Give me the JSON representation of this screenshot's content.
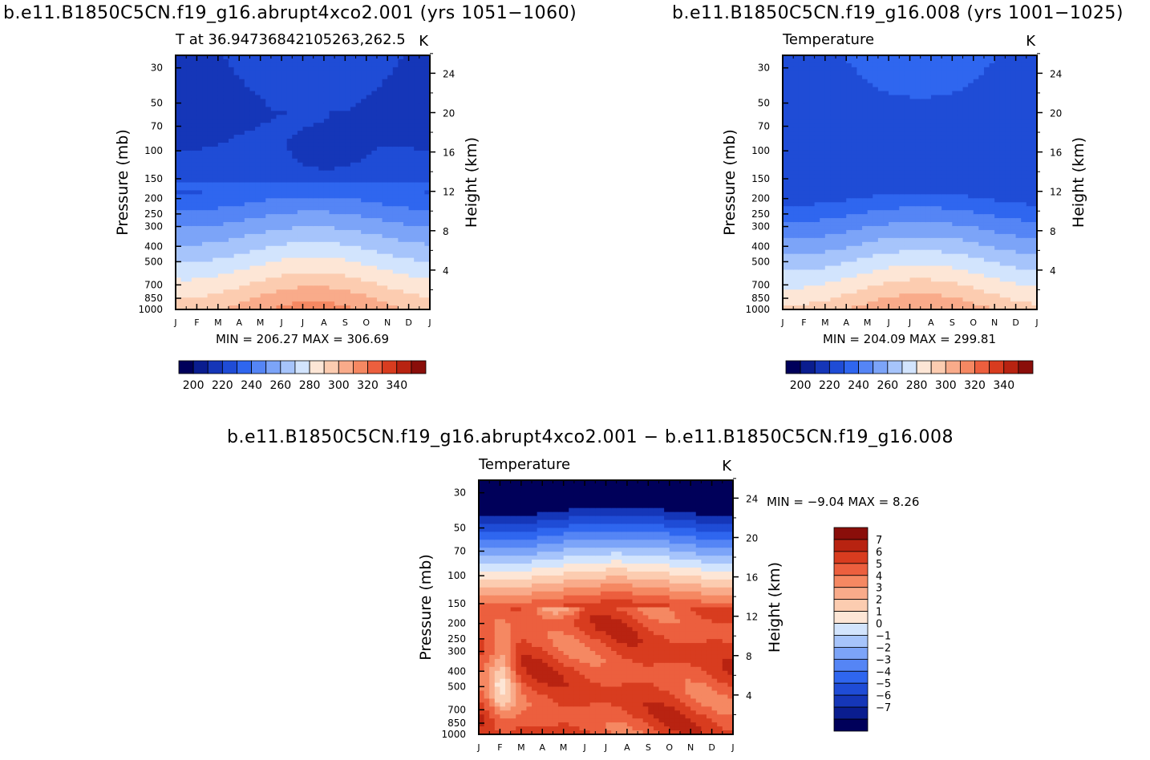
{
  "panel_titles": {
    "top_left": "b.e11.B1850C5CN.f19_g16.abrupt4xco2.001 (yrs 1051−1060)",
    "top_right": "b.e11.B1850C5CN.f19_g16.008 (yrs 1001−1025)",
    "bottom": "b.e11.B1850C5CN.f19_g16.abrupt4xco2.001 − b.e11.B1850C5CN.f19_g16.008"
  },
  "colors": {
    "temp_levels": [
      "#00005a",
      "#0a1d8f",
      "#1536b8",
      "#1f4cd6",
      "#2f66ef",
      "#5585f5",
      "#7ca4f8",
      "#a6c4fb",
      "#d2e4fd",
      "#fde6d6",
      "#fcccb0",
      "#f9ab8a",
      "#f58862",
      "#ec5f3e",
      "#d83c1f",
      "#b82311",
      "#8a0e0a"
    ],
    "diff_levels": [
      "#00005a",
      "#0a1d8f",
      "#1536b8",
      "#1f4cd6",
      "#2f66ef",
      "#5585f5",
      "#7ca4f8",
      "#a6c4fb",
      "#d2e4fd",
      "#fde6d6",
      "#fcccb0",
      "#f9ab8a",
      "#f58862",
      "#ec5f3e",
      "#d83c1f",
      "#b82311",
      "#8a0e0a"
    ]
  },
  "chart_data": [
    {
      "id": "abrupt4xco2",
      "type": "heatmap",
      "title": "b.e11.B1850C5CN.f19_g16.abrupt4xco2.001 (yrs 1051−1060)",
      "left_string": "T  at  36.94736842105263,262.5",
      "right_string": "K",
      "xlabel": "",
      "ylabel": "Pressure (mb)",
      "y2label": "Height (km)",
      "x_ticks": [
        "J",
        "F",
        "M",
        "A",
        "M",
        "J",
        "J",
        "A",
        "S",
        "O",
        "N",
        "D",
        "J"
      ],
      "pressure_ticks": [
        30,
        50,
        70,
        100,
        150,
        200,
        250,
        300,
        400,
        500,
        700,
        850,
        1000
      ],
      "height_ticks": [
        4,
        8,
        12,
        16,
        20,
        24
      ],
      "ylim": [
        1000,
        25
      ],
      "min_max_text": "MIN = 206.27  MAX = 306.69",
      "min": 206.27,
      "max": 306.69,
      "colorbar_labels": [
        "200",
        "220",
        "240",
        "260",
        "280",
        "300",
        "320",
        "340"
      ],
      "colorbar_levels": [
        200,
        210,
        220,
        230,
        240,
        250,
        260,
        270,
        280,
        290,
        300,
        310,
        320,
        330,
        340
      ]
    },
    {
      "id": "control",
      "type": "heatmap",
      "title": "b.e11.B1850C5CN.f19_g16.008 (yrs 1001−1025)",
      "left_string": "Temperature",
      "right_string": "K",
      "xlabel": "",
      "ylabel": "Pressure (mb)",
      "y2label": "Height (km)",
      "x_ticks": [
        "J",
        "F",
        "M",
        "A",
        "M",
        "J",
        "J",
        "A",
        "S",
        "O",
        "N",
        "D",
        "J"
      ],
      "pressure_ticks": [
        30,
        50,
        70,
        100,
        150,
        200,
        250,
        300,
        400,
        500,
        700,
        850,
        1000
      ],
      "height_ticks": [
        4,
        8,
        12,
        16,
        20,
        24
      ],
      "ylim": [
        1000,
        25
      ],
      "min_max_text": "MIN = 204.09  MAX = 299.81",
      "min": 204.09,
      "max": 299.81,
      "colorbar_labels": [
        "200",
        "220",
        "240",
        "260",
        "280",
        "300",
        "320",
        "340"
      ],
      "colorbar_levels": [
        200,
        210,
        220,
        230,
        240,
        250,
        260,
        270,
        280,
        290,
        300,
        310,
        320,
        330,
        340
      ]
    },
    {
      "id": "difference",
      "type": "heatmap",
      "title": "b.e11.B1850C5CN.f19_g16.abrupt4xco2.001 − b.e11.B1850C5CN.f19_g16.008",
      "left_string": "Temperature",
      "right_string": "K",
      "xlabel": "",
      "ylabel": "Pressure (mb)",
      "y2label": "Height (km)",
      "x_ticks": [
        "J",
        "F",
        "M",
        "A",
        "M",
        "J",
        "J",
        "A",
        "S",
        "O",
        "N",
        "D",
        "J"
      ],
      "pressure_ticks": [
        30,
        50,
        70,
        100,
        150,
        200,
        250,
        300,
        400,
        500,
        700,
        850,
        1000
      ],
      "height_ticks": [
        4,
        8,
        12,
        16,
        20,
        24
      ],
      "ylim": [
        1000,
        25
      ],
      "min_max_text": "MIN =   −9.04  MAX =    8.26",
      "min": -9.04,
      "max": 8.26,
      "colorbar_labels": [
        "7",
        "6",
        "5",
        "4",
        "3",
        "2",
        "1",
        "0",
        "−1",
        "−2",
        "−3",
        "−4",
        "−5",
        "−6",
        "−7"
      ],
      "colorbar_levels": [
        7,
        6,
        5,
        4,
        3,
        2,
        1,
        0,
        -1,
        -2,
        -3,
        -4,
        -5,
        -6,
        -7
      ]
    }
  ]
}
